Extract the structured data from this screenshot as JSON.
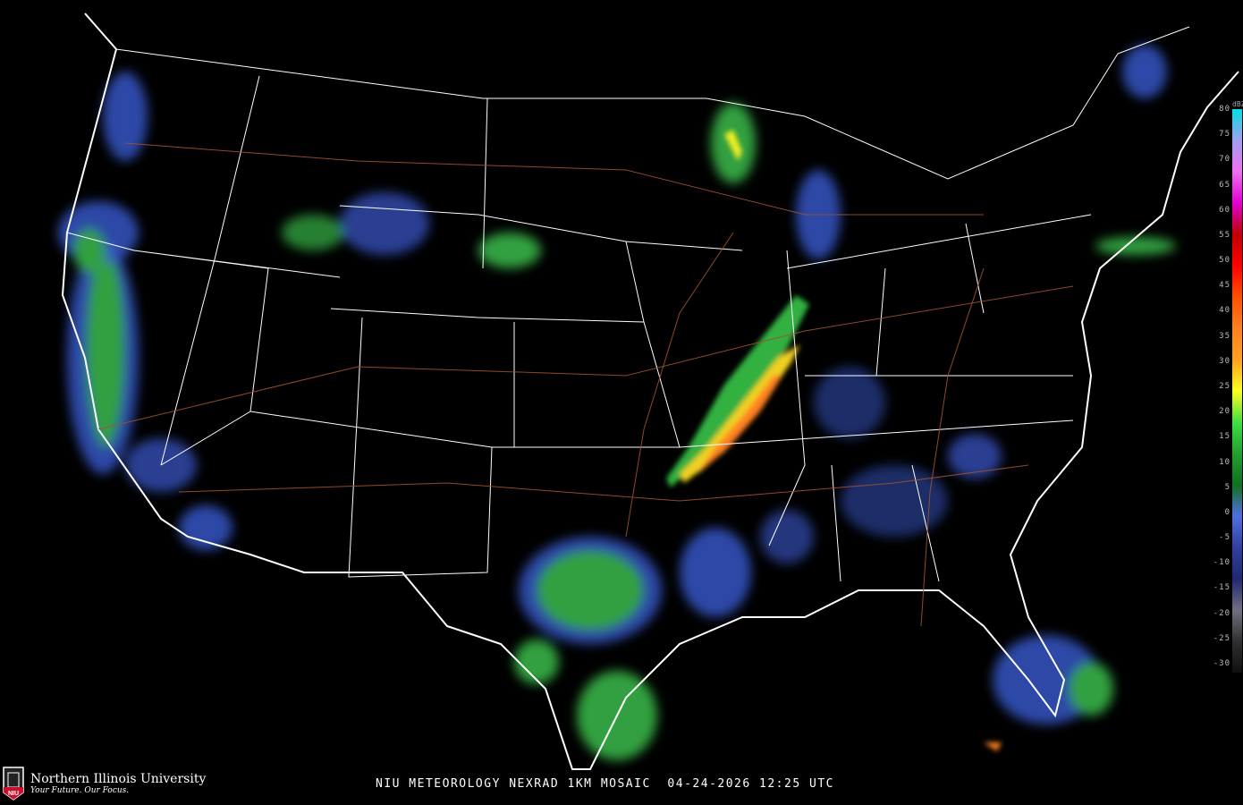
{
  "title": "NIU METEOROLOGY NEXRAD 1KM MOSAIC  04-24-2026 12:25 UTC",
  "logo": {
    "name": "Northern Illinois University",
    "tagline": "Your Future. Our Focus.",
    "badge": "NIU"
  },
  "legend": {
    "unit": "dBZ",
    "ticks": [
      "80",
      "75",
      "70",
      "65",
      "60",
      "55",
      "50",
      "45",
      "40",
      "35",
      "30",
      "25",
      "20",
      "15",
      "10",
      "5",
      "0",
      "-5",
      "-10",
      "-15",
      "-20",
      "-25",
      "-30"
    ],
    "colors": [
      "#00e0e8",
      "#a0a0f0",
      "#f070f0",
      "#e000d0",
      "#c00000",
      "#ff0000",
      "#ff5000",
      "#ff8020",
      "#ffa020",
      "#ffff20",
      "#40e040",
      "#20a030",
      "#107020",
      "#5070e0",
      "#3040a0",
      "#202870",
      "#707080",
      "#303030",
      "#101010"
    ]
  },
  "map_colors": {
    "background": "#000000",
    "borders": "#ffffff",
    "roads": "#a0522d"
  }
}
